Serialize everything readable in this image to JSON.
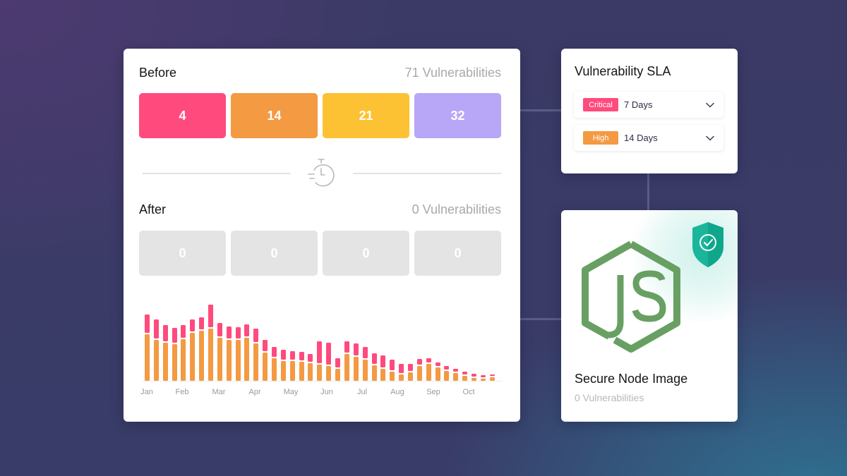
{
  "colors": {
    "critical": "#ff4a7d",
    "high": "#f39a43",
    "medium": "#fcc233",
    "low": "#b8a6f7",
    "empty": "#e4e4e4",
    "node_green": "#68a063",
    "shield": "#1bb59b"
  },
  "before": {
    "title": "Before",
    "count_label": "71 Vulnerabilities",
    "tiles": [
      {
        "severity": "critical",
        "value": "4"
      },
      {
        "severity": "high",
        "value": "14"
      },
      {
        "severity": "medium",
        "value": "21"
      },
      {
        "severity": "low",
        "value": "32"
      }
    ]
  },
  "divider": {
    "icon": "stopwatch-icon"
  },
  "after": {
    "title": "After",
    "count_label": "0 Vulnerabilities",
    "tiles": [
      {
        "severity": "critical",
        "value": "0"
      },
      {
        "severity": "high",
        "value": "0"
      },
      {
        "severity": "medium",
        "value": "0"
      },
      {
        "severity": "low",
        "value": "0"
      }
    ]
  },
  "chart_data": {
    "type": "bar",
    "stacked": true,
    "title": "",
    "xlabel": "",
    "ylabel": "",
    "grid": false,
    "legend": null,
    "month_labels": [
      "Jan",
      "Feb",
      "Mar",
      "Apr",
      "May",
      "Jun",
      "Jul",
      "Aug",
      "Sep",
      "Oct"
    ],
    "x": [
      1,
      2,
      3,
      4,
      5,
      6,
      7,
      8,
      9,
      10,
      11,
      12,
      13,
      14,
      15,
      16,
      17,
      18,
      19,
      20,
      21,
      22,
      23,
      24,
      25,
      26,
      27,
      28,
      29,
      30,
      31,
      32,
      33,
      34,
      35,
      36,
      37,
      38,
      39
    ],
    "series": [
      {
        "name": "High",
        "color": "#f39a43",
        "values": [
          66,
          58,
          54,
          52,
          59,
          68,
          71,
          74,
          61,
          58,
          58,
          61,
          53,
          40,
          32,
          28,
          28,
          27,
          25,
          23,
          21,
          17,
          38,
          34,
          30,
          22,
          17,
          13,
          9,
          12,
          21,
          24,
          19,
          14,
          11,
          7,
          4,
          3,
          5
        ]
      },
      {
        "name": "Critical",
        "color": "#ff4a7d",
        "values": [
          28,
          29,
          25,
          23,
          20,
          19,
          19,
          34,
          21,
          19,
          18,
          19,
          21,
          18,
          16,
          16,
          14,
          14,
          13,
          33,
          33,
          15,
          18,
          19,
          18,
          17,
          19,
          17,
          15,
          12,
          10,
          8,
          7,
          7,
          6,
          6,
          6,
          5,
          4
        ]
      }
    ],
    "ylim": [
      0,
      110
    ]
  },
  "sla": {
    "title": "Vulnerability SLA",
    "rows": [
      {
        "badge": "Critical",
        "badge_color": "#ff4a7d",
        "value": "7 Days"
      },
      {
        "badge": "High",
        "badge_color": "#f39a43",
        "value": "14 Days"
      }
    ]
  },
  "node": {
    "title": "Secure Node Image",
    "subtitle": "0 Vulnerabilities",
    "logo_text": "JS"
  }
}
